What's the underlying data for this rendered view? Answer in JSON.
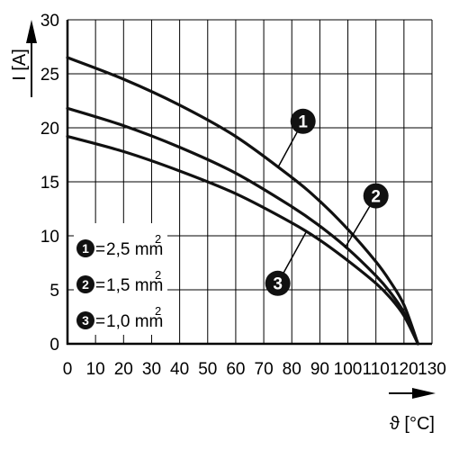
{
  "chart_data": {
    "type": "line",
    "xlabel": "ϑ [°C]",
    "ylabel": "I [A]",
    "xlim": [
      0,
      130
    ],
    "ylim": [
      0,
      30
    ],
    "x_ticks": [
      "0",
      "10",
      "20",
      "30",
      "40",
      "50",
      "60",
      "70",
      "80",
      "90",
      "100",
      "110",
      "120",
      "130"
    ],
    "y_ticks": [
      "0",
      "5",
      "10",
      "15",
      "20",
      "25",
      "30"
    ],
    "grid": true,
    "legend_position": "bottom-left",
    "series": [
      {
        "id": "1",
        "name": "2,5 mm",
        "unit_exponent": "2",
        "x": [
          0,
          20,
          40,
          60,
          80,
          90,
          100,
          110,
          115,
          120,
          125
        ],
        "y": [
          26.5,
          24.5,
          22.1,
          19.2,
          15.4,
          13.2,
          10.6,
          7.6,
          5.8,
          3.6,
          0
        ]
      },
      {
        "id": "2",
        "name": "1,5 mm",
        "unit_exponent": "2",
        "x": [
          0,
          20,
          40,
          60,
          80,
          90,
          100,
          110,
          115,
          120,
          125
        ],
        "y": [
          21.8,
          20.2,
          18.2,
          15.8,
          12.7,
          10.9,
          8.8,
          6.3,
          4.8,
          2.9,
          0
        ]
      },
      {
        "id": "3",
        "name": "1,0 mm",
        "unit_exponent": "2",
        "x": [
          0,
          20,
          40,
          60,
          80,
          90,
          100,
          110,
          115,
          120,
          125
        ],
        "y": [
          19.2,
          17.8,
          16.0,
          13.9,
          11.2,
          9.6,
          7.7,
          5.6,
          4.3,
          2.6,
          0
        ]
      }
    ],
    "callouts": [
      {
        "series": "1",
        "label": "1",
        "at": [
          75,
          16.3
        ],
        "badge": [
          84,
          20.6
        ]
      },
      {
        "series": "2",
        "label": "2",
        "at": [
          99,
          8.9
        ],
        "badge": [
          110,
          13.7
        ]
      },
      {
        "series": "3",
        "label": "3",
        "at": [
          85,
          10.3
        ],
        "badge": [
          75,
          5.6
        ]
      }
    ],
    "colors": {
      "line": "#111111",
      "grid": "#000000",
      "badge": "#111111",
      "badge_text": "#ffffff"
    }
  }
}
